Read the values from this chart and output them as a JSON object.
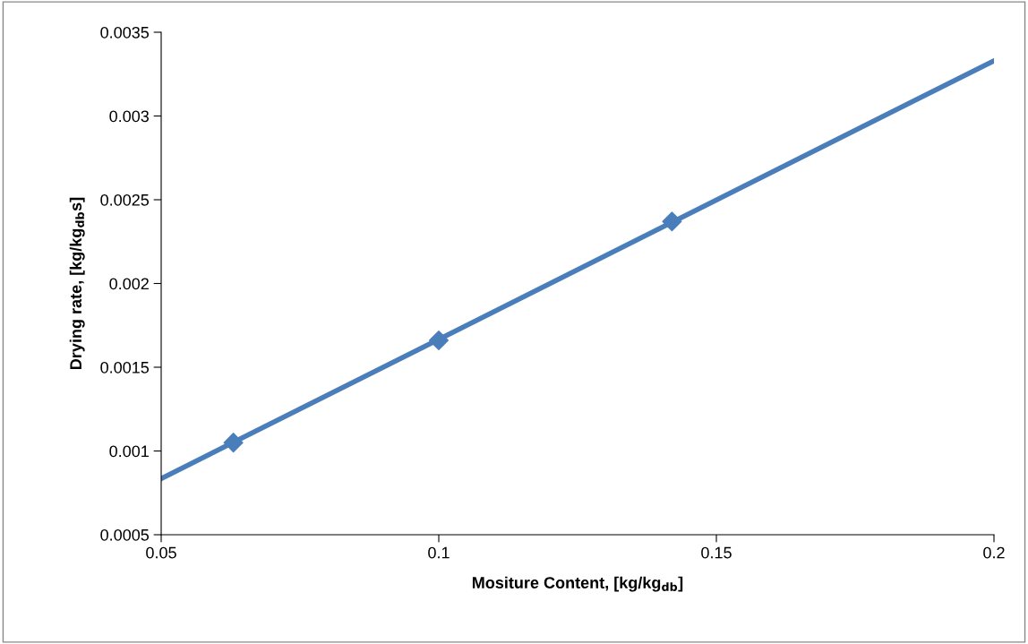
{
  "chart_data": {
    "type": "scatter",
    "xlabel": "Mositure Content, [kg/kg$_{db}$]",
    "ylabel": "Drying rate, [kg/kg$_{db}$s]",
    "xlim": [
      0.05,
      0.2
    ],
    "xticks": [
      0.05,
      0.1,
      0.15,
      0.2
    ],
    "ylim": [
      0.0005,
      0.0035
    ],
    "yticks": [
      0.0005,
      0.001,
      0.0015,
      0.002,
      0.0025,
      0.003,
      0.0035
    ],
    "grid": false,
    "legend": false,
    "series": [
      {
        "type": "line",
        "color": "#4a7ebb",
        "x": [
          0.05,
          0.2
        ],
        "values": [
          0.000835,
          0.00333
        ],
        "marker": "none",
        "line_style": "solid"
      },
      {
        "color": "#4a7ebb",
        "x": [
          0.063,
          0.1,
          0.142
        ],
        "values": [
          0.00105,
          0.00166,
          0.00237
        ],
        "marker": "diamond"
      }
    ]
  }
}
